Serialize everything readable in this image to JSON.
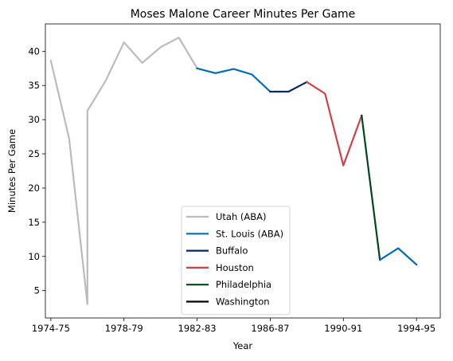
{
  "chart_data": {
    "type": "line",
    "title": "Moses Malone Career Minutes Per Game",
    "xlabel": "Year",
    "ylabel": "Minutes Per Game",
    "xlim": [
      1973.7,
      1995.3
    ],
    "ylim": [
      1.0,
      44.0
    ],
    "xticks": [
      {
        "value": 1974,
        "label": "1974-75"
      },
      {
        "value": 1978,
        "label": "1978-79"
      },
      {
        "value": 1982,
        "label": "1982-83"
      },
      {
        "value": 1986,
        "label": "1986-87"
      },
      {
        "value": 1990,
        "label": "1990-91"
      },
      {
        "value": 1994,
        "label": "1994-95"
      }
    ],
    "yticks": [
      5,
      10,
      15,
      20,
      25,
      30,
      35,
      40
    ],
    "grid": false,
    "legend_position": "lower-center",
    "series": [
      {
        "name": "Utah (ABA)",
        "color": "#bbbbbb",
        "x": [
          1974,
          1975,
          1976,
          1976,
          1977,
          1978,
          1979,
          1980,
          1981,
          1982
        ],
        "y": [
          38.6,
          27.2,
          3.0,
          31.3,
          35.7,
          41.3,
          38.3,
          40.6,
          42.0,
          37.5
        ]
      },
      {
        "name": "St. Louis (ABA)",
        "color": "#006bb6",
        "x": [
          1982,
          1983,
          1984,
          1985,
          1986
        ],
        "y": [
          37.5,
          36.8,
          37.4,
          36.6,
          34.1
        ]
      },
      {
        "name": "Buffalo",
        "color": "#002b5c",
        "x": [
          1986,
          1987,
          1988
        ],
        "y": [
          34.1,
          34.1,
          35.5
        ]
      },
      {
        "name": "Houston",
        "color": "#ce4146",
        "x": [
          1988,
          1989,
          1990,
          1991
        ],
        "y": [
          35.5,
          33.8,
          23.3,
          30.6
        ]
      },
      {
        "name": "Philadelphia",
        "color": "#00471b",
        "x": [
          1991,
          1992
        ],
        "y": [
          30.6,
          9.5
        ]
      },
      {
        "name": "Washington",
        "color": "#000000",
        "x": [],
        "y": []
      },
      {
        "name": "",
        "color": "#006bb6",
        "x": [
          1992,
          1993,
          1994
        ],
        "y": [
          9.5,
          11.2,
          8.8
        ]
      }
    ]
  }
}
